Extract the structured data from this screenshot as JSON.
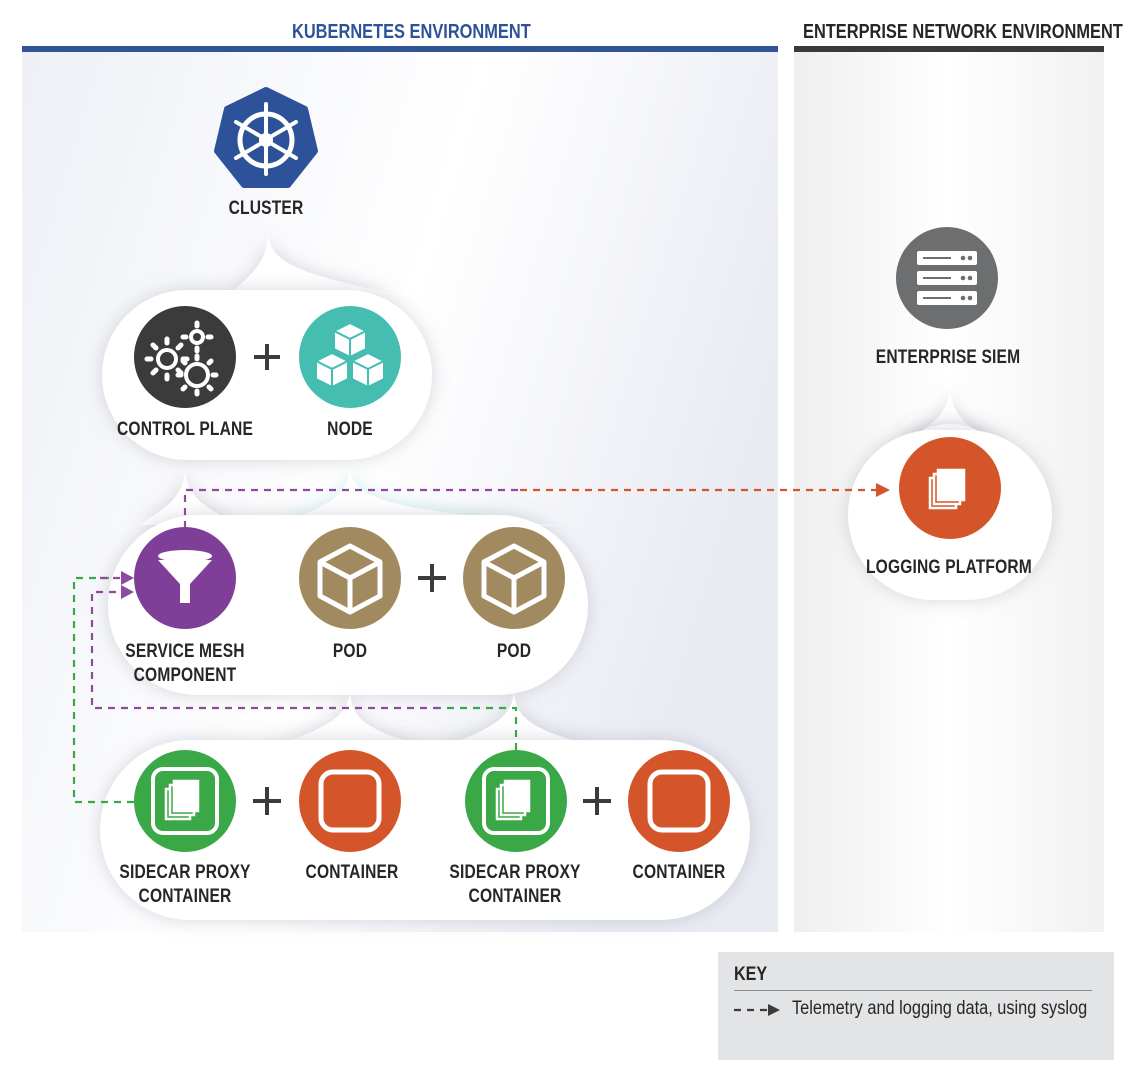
{
  "headers": {
    "kubernetes": "KUBERNETES ENVIRONMENT",
    "enterprise": "ENTERPRISE NETWORK ENVIRONMENT"
  },
  "nodes": {
    "cluster": "CLUSTER",
    "control_plane": "CONTROL PLANE",
    "node": "NODE",
    "service_mesh_1": "SERVICE MESH",
    "service_mesh_2": "COMPONENT",
    "pod_a": "POD",
    "pod_b": "POD",
    "sidecar_a_1": "SIDECAR PROXY",
    "sidecar_a_2": "CONTAINER",
    "container_a": "CONTAINER",
    "sidecar_b_1": "SIDECAR PROXY",
    "sidecar_b_2": "CONTAINER",
    "container_b": "CONTAINER",
    "enterprise_siem": "ENTERPRISE SIEM",
    "logging_platform": "LOGGING PLATFORM"
  },
  "operators": {
    "plus": "+"
  },
  "key": {
    "title": "KEY",
    "item": "Telemetry and logging data, using syslog"
  },
  "colors": {
    "kubernetes_blue": "#2e5299",
    "header_rule_blue": "#2f5597",
    "dark_gray": "#3b3b3b",
    "teal": "#45bdb0",
    "purple": "#7f3f98",
    "tan": "#a18a5f",
    "green": "#3aa847",
    "orange": "#d45529",
    "siem_gray": "#6d6e70",
    "flow_purple": "#8e4a9c",
    "flow_green": "#3aa847",
    "flow_orange": "#d45529",
    "key_background": "#e3e4e6"
  },
  "icons": {
    "cluster": "kubernetes-helm-icon",
    "control_plane": "gears-icon",
    "node": "cubes-icon",
    "service_mesh": "funnel-icon",
    "pod": "cube-icon",
    "sidecar": "layered-documents-icon",
    "container": "rounded-square-icon",
    "enterprise_siem": "server-rack-icon",
    "logging_platform": "stacked-documents-icon"
  }
}
